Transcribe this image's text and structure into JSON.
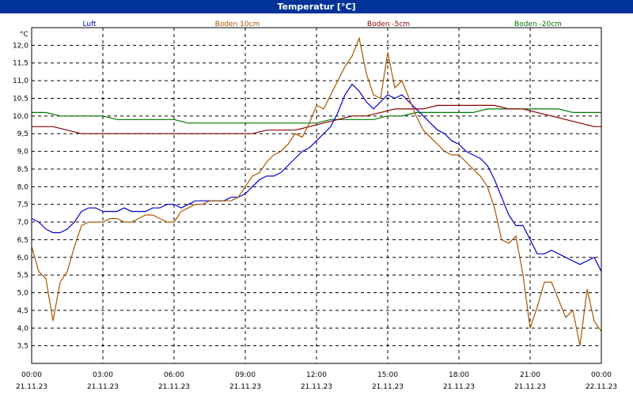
{
  "chart_data": {
    "type": "line",
    "title": "Temperatur [°C]",
    "ylabel": "°C",
    "ylim": [
      3.0,
      12.5
    ],
    "xlim": [
      0,
      24
    ],
    "yticks": [
      "3,5",
      "4,0",
      "4,5",
      "5,0",
      "5,5",
      "6,0",
      "6,5",
      "7,0",
      "7,5",
      "8,0",
      "8,5",
      "9,0",
      "9,5",
      "10,0",
      "10,5",
      "11,0",
      "11,5",
      "12,0"
    ],
    "ytick_values": [
      3.5,
      4.0,
      4.5,
      5.0,
      5.5,
      6.0,
      6.5,
      7.0,
      7.5,
      8.0,
      8.5,
      9.0,
      9.5,
      10.0,
      10.5,
      11.0,
      11.5,
      12.0
    ],
    "xticks": [
      {
        "time": "00:00",
        "date": "21.11.23"
      },
      {
        "time": "03:00",
        "date": "21.11.23"
      },
      {
        "time": "06:00",
        "date": "21.11.23"
      },
      {
        "time": "09:00",
        "date": "21.11.23"
      },
      {
        "time": "12:00",
        "date": "21.11.23"
      },
      {
        "time": "15:00",
        "date": "21.11.23"
      },
      {
        "time": "18:00",
        "date": "21.11.23"
      },
      {
        "time": "21:00",
        "date": "21.11.23"
      },
      {
        "time": "00:00",
        "date": "22.11.23"
      }
    ],
    "grid": true,
    "series": [
      {
        "name": "Luft",
        "color": "#0000cc",
        "x": [
          0,
          0.3,
          0.6,
          0.9,
          1.2,
          1.5,
          1.8,
          2.1,
          2.4,
          2.7,
          3.0,
          3.3,
          3.6,
          3.9,
          4.2,
          4.5,
          4.8,
          5.1,
          5.4,
          5.7,
          6.0,
          6.3,
          6.6,
          6.9,
          7.2,
          7.5,
          7.8,
          8.1,
          8.4,
          8.7,
          9.0,
          9.3,
          9.6,
          9.9,
          10.2,
          10.5,
          10.8,
          11.1,
          11.4,
          11.7,
          12.0,
          12.3,
          12.6,
          12.9,
          13.2,
          13.5,
          13.8,
          14.1,
          14.4,
          14.7,
          15.0,
          15.3,
          15.6,
          15.9,
          16.2,
          16.5,
          16.8,
          17.1,
          17.4,
          17.7,
          18.0,
          18.3,
          18.6,
          18.9,
          19.2,
          19.5,
          19.8,
          20.1,
          20.4,
          20.7,
          21.0,
          21.3,
          21.6,
          21.9,
          22.2,
          22.5,
          22.8,
          23.1,
          23.4,
          23.7,
          24.0
        ],
        "y": [
          7.1,
          7.0,
          6.8,
          6.7,
          6.7,
          6.8,
          7.0,
          7.3,
          7.4,
          7.4,
          7.3,
          7.3,
          7.3,
          7.4,
          7.3,
          7.3,
          7.3,
          7.4,
          7.4,
          7.5,
          7.5,
          7.4,
          7.5,
          7.6,
          7.6,
          7.6,
          7.6,
          7.6,
          7.7,
          7.7,
          7.8,
          8.0,
          8.2,
          8.3,
          8.3,
          8.4,
          8.6,
          8.8,
          9.0,
          9.1,
          9.3,
          9.5,
          9.7,
          10.1,
          10.6,
          10.9,
          10.7,
          10.4,
          10.2,
          10.4,
          10.6,
          10.5,
          10.6,
          10.4,
          10.2,
          10.0,
          9.8,
          9.6,
          9.5,
          9.3,
          9.2,
          9.0,
          8.9,
          8.8,
          8.6,
          8.2,
          7.7,
          7.2,
          6.9,
          6.9,
          6.5,
          6.1,
          6.1,
          6.2,
          6.1,
          6.0,
          5.9,
          5.8,
          5.9,
          6.0,
          5.6
        ]
      },
      {
        "name": "Boden 10cm",
        "color": "#aa5500",
        "x": [
          0,
          0.3,
          0.6,
          0.9,
          1.2,
          1.5,
          1.8,
          2.1,
          2.4,
          2.7,
          3.0,
          3.3,
          3.6,
          3.9,
          4.2,
          4.5,
          4.8,
          5.1,
          5.4,
          5.7,
          6.0,
          6.3,
          6.6,
          6.9,
          7.2,
          7.5,
          7.8,
          8.1,
          8.4,
          8.7,
          9.0,
          9.3,
          9.6,
          9.9,
          10.2,
          10.5,
          10.8,
          11.1,
          11.4,
          11.7,
          12.0,
          12.3,
          12.6,
          12.9,
          13.2,
          13.5,
          13.8,
          14.1,
          14.4,
          14.7,
          15.0,
          15.3,
          15.6,
          15.9,
          16.2,
          16.5,
          16.8,
          17.1,
          17.4,
          17.7,
          18.0,
          18.3,
          18.6,
          18.9,
          19.2,
          19.5,
          19.8,
          20.1,
          20.4,
          20.7,
          21.0,
          21.3,
          21.6,
          21.9,
          22.2,
          22.5,
          22.8,
          23.1,
          23.4,
          23.7,
          24.0
        ],
        "y": [
          6.3,
          5.6,
          5.4,
          4.2,
          5.3,
          5.6,
          6.3,
          6.9,
          7.0,
          7.0,
          7.0,
          7.1,
          7.1,
          7.0,
          7.0,
          7.1,
          7.2,
          7.2,
          7.1,
          7.0,
          7.0,
          7.3,
          7.4,
          7.5,
          7.5,
          7.6,
          7.6,
          7.6,
          7.6,
          7.7,
          8.0,
          8.3,
          8.4,
          8.7,
          8.9,
          9.0,
          9.2,
          9.5,
          9.4,
          9.8,
          10.3,
          10.2,
          10.6,
          11.0,
          11.4,
          11.7,
          12.2,
          11.2,
          10.6,
          10.5,
          11.8,
          10.8,
          11.0,
          10.5,
          10.0,
          9.6,
          9.4,
          9.2,
          9.0,
          8.9,
          8.9,
          8.7,
          8.5,
          8.3,
          8.0,
          7.4,
          6.5,
          6.4,
          6.6,
          5.5,
          4.0,
          4.6,
          5.3,
          5.3,
          4.8,
          4.3,
          4.5,
          3.5,
          5.1,
          4.2,
          3.9
        ]
      },
      {
        "name": "Boden -5cm",
        "color": "#880000",
        "x": [
          0,
          0.9,
          1.5,
          2.1,
          2.7,
          3.3,
          3.9,
          4.5,
          5.1,
          5.7,
          6.3,
          6.9,
          7.5,
          8.1,
          8.7,
          9.3,
          9.9,
          10.5,
          11.1,
          11.7,
          12.3,
          12.9,
          13.5,
          14.1,
          14.7,
          15.3,
          15.9,
          16.5,
          17.1,
          17.7,
          18.3,
          18.9,
          19.5,
          20.1,
          20.7,
          21.3,
          21.9,
          22.5,
          23.1,
          23.7,
          24.0
        ],
        "y": [
          9.7,
          9.7,
          9.6,
          9.5,
          9.5,
          9.5,
          9.5,
          9.5,
          9.5,
          9.5,
          9.5,
          9.5,
          9.5,
          9.5,
          9.5,
          9.5,
          9.6,
          9.6,
          9.6,
          9.7,
          9.8,
          9.9,
          10.0,
          10.0,
          10.1,
          10.2,
          10.2,
          10.2,
          10.3,
          10.3,
          10.3,
          10.3,
          10.3,
          10.2,
          10.2,
          10.1,
          10.0,
          9.9,
          9.8,
          9.7,
          9.7
        ]
      },
      {
        "name": "Boden -20cm",
        "color": "#007700",
        "x": [
          0,
          0.6,
          1.2,
          1.8,
          2.4,
          3.0,
          3.6,
          4.2,
          4.8,
          5.4,
          6.0,
          6.6,
          7.2,
          7.8,
          8.4,
          9.0,
          9.6,
          10.2,
          10.8,
          11.4,
          12.0,
          12.6,
          13.2,
          13.8,
          14.4,
          15.0,
          15.6,
          16.2,
          16.8,
          17.4,
          18.0,
          18.6,
          19.2,
          19.8,
          20.4,
          21.0,
          21.6,
          22.2,
          22.8,
          23.4,
          24.0
        ],
        "y": [
          10.1,
          10.1,
          10.0,
          10.0,
          10.0,
          10.0,
          9.9,
          9.9,
          9.9,
          9.9,
          9.9,
          9.8,
          9.8,
          9.8,
          9.8,
          9.8,
          9.8,
          9.8,
          9.8,
          9.8,
          9.8,
          9.9,
          9.9,
          9.9,
          9.9,
          10.0,
          10.0,
          10.1,
          10.1,
          10.1,
          10.1,
          10.1,
          10.2,
          10.2,
          10.2,
          10.2,
          10.2,
          10.2,
          10.1,
          10.1,
          10.1
        ]
      }
    ]
  }
}
